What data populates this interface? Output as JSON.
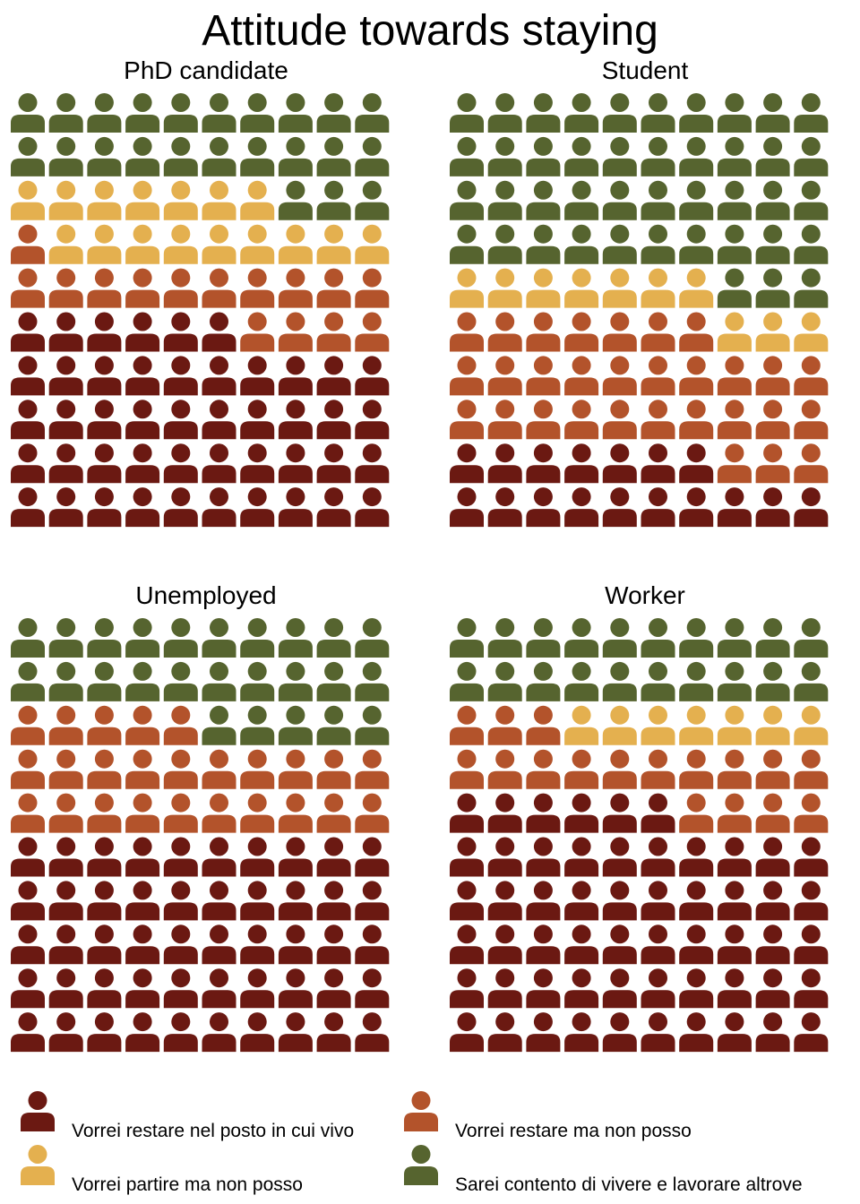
{
  "chart_data": {
    "type": "waffle",
    "title": "Attitude towards staying",
    "colors": {
      "Vorrei restare nel posto in cui vivo": "#6b1912",
      "Vorrei restare ma non posso": "#b3532b",
      "Vorrei partire ma non posso": "#e4b04f",
      "Sarei contento di vivere e lavorare altrove": "#56642f"
    },
    "legend": [
      "Vorrei restare nel posto in cui vivo",
      "Vorrei restare ma non posso",
      "Vorrei partire ma non posso",
      "Sarei contento di vivere e lavorare altrove"
    ],
    "panels": [
      {
        "name": "PhD candidate",
        "values": {
          "Vorrei restare nel posto in cui vivo": 46,
          "Vorrei restare ma non posso": 15,
          "Vorrei partire ma non posso": 16,
          "Sarei contento di vivere e lavorare altrove": 23
        }
      },
      {
        "name": "Student",
        "values": {
          "Vorrei restare nel posto in cui vivo": 17,
          "Vorrei restare ma non posso": 30,
          "Vorrei partire ma non posso": 10,
          "Sarei contento di vivere e lavorare altrove": 43
        }
      },
      {
        "name": "Unemployed",
        "values": {
          "Vorrei restare nel posto in cui vivo": 50,
          "Vorrei restare ma non posso": 25,
          "Vorrei partire ma non posso": 0,
          "Sarei contento di vivere e lavorare altrove": 25
        }
      },
      {
        "name": "Worker",
        "values": {
          "Vorrei restare nel posto in cui vivo": 56,
          "Vorrei restare ma non posso": 17,
          "Vorrei partire ma non posso": 7,
          "Sarei contento di vivere e lavorare altrove": 20
        }
      }
    ]
  }
}
